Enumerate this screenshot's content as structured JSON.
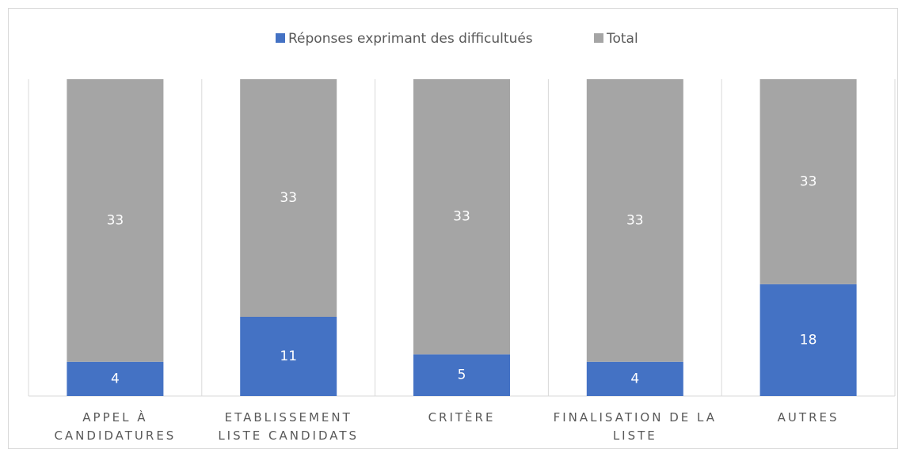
{
  "chart_data": {
    "type": "bar",
    "stacking": "percent",
    "grid": true,
    "categories": [
      "APPEL À CANDIDATURES",
      "ETABLISSEMENT LISTE CANDIDATS",
      "CRITÈRE",
      "FINALISATION DE LA LISTE",
      "AUTRES"
    ],
    "series": [
      {
        "name": "Réponses exprimant des difficultués",
        "color": "#4472c4",
        "values": [
          4,
          11,
          5,
          4,
          18
        ]
      },
      {
        "name": "Total",
        "color": "#a5a5a5",
        "values": [
          33,
          33,
          33,
          33,
          33
        ]
      }
    ],
    "legend": "top"
  }
}
